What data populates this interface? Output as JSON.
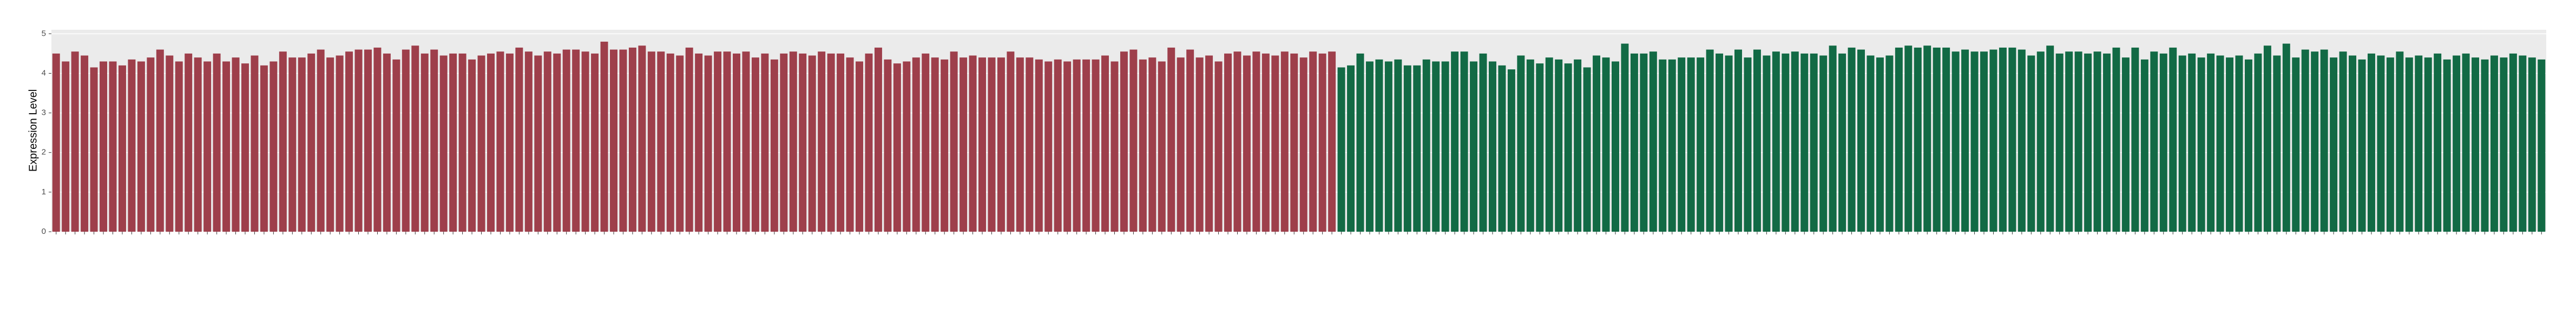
{
  "chart_data": {
    "type": "bar",
    "y_label": "Expression Level",
    "ylim": [
      0,
      5.1
    ],
    "yticks": [
      0,
      1,
      2,
      3,
      4,
      5
    ],
    "grid": true,
    "categories": [
      null,
      null,
      null,
      null,
      null,
      null,
      null,
      null,
      null,
      null,
      null,
      null,
      null,
      null,
      null,
      null,
      null,
      null,
      null,
      null,
      null,
      null,
      null,
      null,
      null,
      null,
      null,
      null,
      null,
      null,
      null,
      null,
      null,
      null,
      null,
      null,
      null,
      null,
      null,
      null,
      null,
      null,
      null,
      null,
      null,
      null,
      null,
      null,
      null,
      null,
      null,
      null,
      null,
      null,
      null,
      null,
      null,
      null,
      null,
      null,
      null,
      null,
      null,
      null,
      null,
      null,
      null,
      null,
      null,
      null,
      null,
      null,
      null,
      null,
      null,
      null,
      null,
      null,
      null,
      null,
      null,
      null,
      null,
      null,
      null,
      null,
      null,
      null,
      null,
      null,
      null,
      null,
      null,
      null,
      null,
      null,
      null,
      null,
      null,
      null,
      null,
      null,
      null,
      null,
      null,
      null,
      null,
      null,
      null,
      null,
      null,
      null,
      null,
      null,
      null,
      null,
      null,
      null,
      null,
      null,
      null,
      null,
      null,
      null,
      null,
      null,
      null,
      null,
      null,
      null,
      null,
      null,
      null,
      null,
      null,
      null,
      null,
      null,
      null,
      null,
      null,
      null,
      null,
      null,
      null,
      null,
      null,
      null,
      null,
      null,
      null,
      null,
      null,
      null,
      null,
      null,
      null,
      null,
      null,
      null,
      null,
      null,
      null,
      null,
      null,
      null,
      null,
      null,
      null,
      null,
      null,
      null,
      null,
      null,
      null,
      null,
      null,
      null,
      null,
      null,
      null,
      null,
      null,
      null,
      null,
      null,
      null,
      null,
      null,
      null,
      null,
      null,
      null,
      null,
      null,
      null,
      null,
      null,
      null,
      null,
      null,
      null,
      null,
      null,
      null,
      null,
      null,
      null,
      null,
      null,
      null,
      null,
      null,
      null,
      null,
      null,
      null,
      null,
      null,
      null,
      null,
      null,
      null,
      null,
      null,
      null,
      null,
      null,
      null,
      null,
      null,
      null,
      null,
      null,
      null,
      null,
      null,
      null,
      null,
      null,
      null,
      null,
      null,
      null,
      null,
      null,
      null,
      null,
      null,
      null,
      null,
      null,
      null,
      null,
      null,
      null,
      null,
      null,
      null,
      null,
      null,
      null,
      null,
      null
    ],
    "series": [
      {
        "color": "#9e3f4b",
        "values": [
          4.5,
          4.3,
          4.55,
          4.45,
          4.15,
          4.3,
          4.3,
          4.2,
          4.35,
          4.3,
          4.4,
          4.6,
          4.45,
          4.3,
          4.5,
          4.4,
          4.3,
          4.5,
          4.3,
          4.4,
          4.25,
          4.45,
          4.2,
          4.3,
          4.55,
          4.4,
          4.4,
          4.5,
          4.6,
          4.4,
          4.45,
          4.55,
          4.6,
          4.6,
          4.65,
          4.5,
          4.35,
          4.6,
          4.7,
          4.5,
          4.6,
          4.45,
          4.5,
          4.5,
          4.35,
          4.45,
          4.5,
          4.55,
          4.5,
          4.65,
          4.55,
          4.45,
          4.55,
          4.5,
          4.6,
          4.6,
          4.55,
          4.5,
          4.8,
          4.6,
          4.6,
          4.65,
          4.7,
          4.55,
          4.55,
          4.5,
          4.45,
          4.65,
          4.5,
          4.45,
          4.55,
          4.55,
          4.5,
          4.55,
          4.4,
          4.5,
          4.35,
          4.5,
          4.55,
          4.5,
          4.45,
          4.55,
          4.5,
          4.5,
          4.4,
          4.3,
          4.5,
          4.65,
          4.35,
          4.25,
          4.3,
          4.4,
          4.5,
          4.4,
          4.35,
          4.55,
          4.4,
          4.45,
          4.4,
          4.4,
          4.4,
          4.55,
          4.4,
          4.4,
          4.35,
          4.3,
          4.35,
          4.3,
          4.35,
          4.35,
          4.35,
          4.45,
          4.3,
          4.55,
          4.6,
          4.35,
          4.4,
          4.3,
          4.65,
          4.4,
          4.6,
          4.4,
          4.45,
          4.3,
          4.5,
          4.55,
          4.45,
          4.55,
          4.5,
          4.45,
          4.55,
          4.5,
          4.4,
          4.55,
          4.5,
          4.55,
          null,
          null,
          null,
          null,
          null,
          null,
          null,
          null,
          null,
          null,
          null,
          null,
          null,
          null,
          null,
          null,
          null,
          null,
          null,
          null,
          null,
          null,
          null,
          null,
          null,
          null,
          null,
          null,
          null,
          null,
          null,
          null,
          null,
          null,
          null,
          null,
          null,
          null,
          null,
          null,
          null,
          null,
          null,
          null,
          null,
          null,
          null,
          null,
          null,
          null,
          null,
          null,
          null,
          null,
          null,
          null,
          null,
          null,
          null,
          null,
          null,
          null,
          null,
          null,
          null,
          null,
          null,
          null,
          null,
          null,
          null,
          null,
          null,
          null,
          null,
          null,
          null,
          null,
          null,
          null,
          null,
          null,
          null,
          null,
          null,
          null,
          null,
          null,
          null,
          null,
          null,
          null,
          null,
          null,
          null,
          null,
          null,
          null,
          null,
          null,
          null,
          null,
          null,
          null,
          null,
          null,
          null,
          null,
          null,
          null,
          null,
          null,
          null,
          null,
          null,
          null,
          null,
          null,
          null,
          null,
          null,
          null,
          null,
          null,
          null,
          null,
          null,
          null
        ]
      },
      {
        "color": "#126a45",
        "values": [
          null,
          null,
          null,
          null,
          null,
          null,
          null,
          null,
          null,
          null,
          null,
          null,
          null,
          null,
          null,
          null,
          null,
          null,
          null,
          null,
          null,
          null,
          null,
          null,
          null,
          null,
          null,
          null,
          null,
          null,
          null,
          null,
          null,
          null,
          null,
          null,
          null,
          null,
          null,
          null,
          null,
          null,
          null,
          null,
          null,
          null,
          null,
          null,
          null,
          null,
          null,
          null,
          null,
          null,
          null,
          null,
          null,
          null,
          null,
          null,
          null,
          null,
          null,
          null,
          null,
          null,
          null,
          null,
          null,
          null,
          null,
          null,
          null,
          null,
          null,
          null,
          null,
          null,
          null,
          null,
          null,
          null,
          null,
          null,
          null,
          null,
          null,
          null,
          null,
          null,
          null,
          null,
          null,
          null,
          null,
          null,
          null,
          null,
          null,
          null,
          null,
          null,
          null,
          null,
          null,
          null,
          null,
          null,
          null,
          null,
          null,
          null,
          null,
          null,
          null,
          null,
          null,
          null,
          null,
          null,
          null,
          null,
          null,
          null,
          null,
          null,
          null,
          null,
          null,
          null,
          null,
          null,
          null,
          null,
          null,
          null,
          4.15,
          4.2,
          4.5,
          4.3,
          4.35,
          4.3,
          4.35,
          4.2,
          4.2,
          4.35,
          4.3,
          4.3,
          4.55,
          4.55,
          4.3,
          4.5,
          4.3,
          4.2,
          4.1,
          4.45,
          4.35,
          4.25,
          4.4,
          4.35,
          4.25,
          4.35,
          4.15,
          4.45,
          4.4,
          4.3,
          4.75,
          4.5,
          4.5,
          4.55,
          4.35,
          4.35,
          4.4,
          4.4,
          4.4,
          4.6,
          4.5,
          4.45,
          4.6,
          4.4,
          4.6,
          4.45,
          4.55,
          4.5,
          4.55,
          4.5,
          4.5,
          4.45,
          4.7,
          4.5,
          4.65,
          4.6,
          4.45,
          4.4,
          4.45,
          4.65,
          4.7,
          4.65,
          4.7,
          4.65,
          4.65,
          4.55,
          4.6,
          4.55,
          4.55,
          4.6,
          4.65,
          4.65,
          4.6,
          4.45,
          4.55,
          4.7,
          4.5,
          4.55,
          4.55,
          4.5,
          4.55,
          4.5,
          4.65,
          4.4,
          4.65,
          4.35,
          4.55,
          4.5,
          4.65,
          4.45,
          4.5,
          4.4,
          4.5,
          4.45,
          4.4,
          4.45,
          4.35,
          4.5,
          4.7,
          4.45,
          4.75,
          4.4,
          4.6,
          4.55,
          4.6,
          4.4,
          4.55,
          4.45,
          4.35,
          4.5,
          4.45,
          4.4,
          4.55,
          4.4,
          4.45,
          4.4,
          4.5,
          4.35,
          4.45,
          4.5,
          4.4,
          4.35,
          4.45,
          4.4,
          4.5,
          4.45,
          4.4,
          4.35
        ]
      }
    ]
  }
}
